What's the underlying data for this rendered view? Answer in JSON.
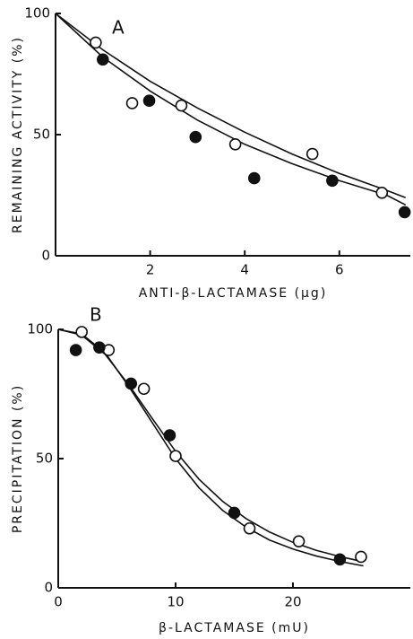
{
  "chart_data": [
    {
      "type": "scatter",
      "panel": "A",
      "ylabel": "REMAINING ACTIVITY (%)",
      "xlabel": "ANTI-β-LACTAMASE (μg)",
      "xlim": [
        0,
        7.5
      ],
      "ylim": [
        0,
        100
      ],
      "xticks": [
        2,
        4,
        6
      ],
      "yticks": [
        0,
        50,
        100
      ],
      "series": [
        {
          "marker": "open",
          "x": [
            0.85,
            1.62,
            2.66,
            3.8,
            5.43,
            6.9
          ],
          "values": [
            88,
            63,
            62,
            46,
            42,
            26
          ]
        },
        {
          "marker": "filled",
          "x": [
            1.0,
            1.98,
            2.96,
            4.2,
            5.85,
            7.38
          ],
          "values": [
            81,
            64,
            49,
            32,
            31,
            18
          ]
        }
      ],
      "curves": [
        {
          "x": [
            0,
            1,
            2,
            3,
            4,
            5,
            6,
            7,
            7.4
          ],
          "values": [
            100,
            85,
            72,
            61,
            51,
            42,
            34,
            27,
            24
          ]
        },
        {
          "x": [
            0,
            1,
            2,
            3,
            4,
            5,
            6,
            7,
            7.4
          ],
          "values": [
            100,
            82,
            68,
            56,
            46,
            38,
            31,
            25,
            21
          ]
        }
      ]
    },
    {
      "type": "scatter",
      "panel": "B",
      "ylabel": "PRECIPITATION (%)",
      "xlabel": "β-LACTAMASE (mU)",
      "xlim": [
        0,
        30
      ],
      "ylim": [
        0,
        100
      ],
      "xticks": [
        0,
        10,
        20
      ],
      "yticks": [
        0,
        50,
        100
      ],
      "series": [
        {
          "marker": "open",
          "x": [
            2,
            4.3,
            7.3,
            10,
            16.3,
            20.5,
            25.8
          ],
          "values": [
            99,
            92,
            77,
            51,
            23,
            18,
            12
          ]
        },
        {
          "marker": "filled",
          "x": [
            1.5,
            3.5,
            6.2,
            9.5,
            15,
            24
          ],
          "values": [
            92,
            93,
            79,
            59,
            29,
            11
          ]
        }
      ],
      "curves": [
        {
          "x": [
            0,
            2,
            4,
            6,
            8,
            10,
            12,
            14,
            16,
            18,
            20,
            22,
            24,
            26
          ],
          "values": [
            100,
            98.2,
            90.9,
            78,
            64,
            50,
            38.7,
            30,
            23.5,
            18.5,
            15,
            12.3,
            10.2,
            8.5
          ]
        },
        {
          "x": [
            0,
            2,
            4,
            6,
            8,
            10,
            12,
            14,
            16,
            18,
            20,
            22,
            24,
            26
          ],
          "values": [
            100,
            97.8,
            90.3,
            78.6,
            65.6,
            52.8,
            42,
            33.5,
            26.8,
            21.6,
            17.6,
            14.5,
            12.1,
            10.1
          ]
        }
      ]
    }
  ]
}
